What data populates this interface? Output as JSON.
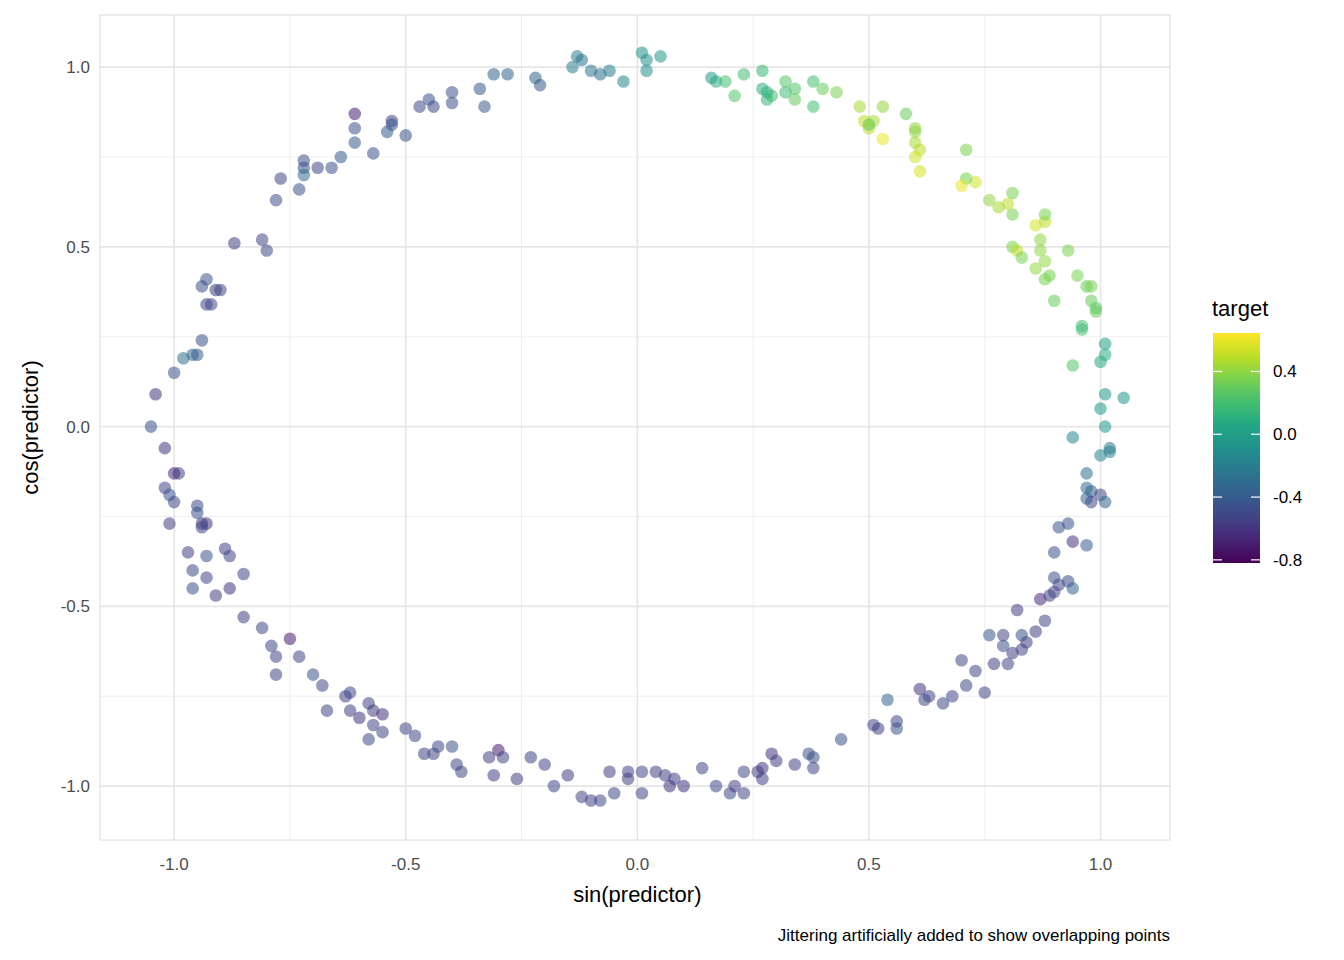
{
  "chart_data": {
    "type": "scatter",
    "x_label": "sin(predictor)",
    "y_label": "cos(predictor)",
    "annotation": "Jittering artificially added to show overlapping points",
    "grid": true,
    "marker": "circle",
    "xlim": [
      -1.16,
      1.15
    ],
    "ylim": [
      -1.15,
      1.145
    ],
    "xticks": [
      {
        "value": -1,
        "label": "-1.0"
      },
      {
        "value": -0.5,
        "label": "-0.5"
      },
      {
        "value": 0,
        "label": "0.0"
      },
      {
        "value": 0.5,
        "label": "0.5"
      },
      {
        "value": 1,
        "label": "1.0"
      }
    ],
    "yticks": [
      {
        "value": -1,
        "label": "-1.0"
      },
      {
        "value": -0.5,
        "label": "-0.5"
      },
      {
        "value": 0,
        "label": "0.0"
      },
      {
        "value": 0.5,
        "label": "0.5"
      },
      {
        "value": 1,
        "label": "1.0"
      }
    ],
    "colorbar": {
      "label": "target",
      "range": [
        -0.82,
        0.645
      ],
      "ticks": [
        {
          "value": -0.8,
          "label": "-0.8"
        },
        {
          "value": -0.4,
          "label": "-0.4"
        },
        {
          "value": 0,
          "label": "0.0"
        },
        {
          "value": 0.4,
          "label": "0.4"
        }
      ]
    },
    "x": [
      -0.13,
      -0.12,
      -0.14,
      -0.1,
      -0.08,
      -0.06,
      -0.03,
      0.01,
      0.02,
      0.02,
      0.05,
      -0.22,
      -0.21,
      -0.28,
      -0.31,
      -0.33,
      -0.34,
      -0.4,
      -0.4,
      -0.44,
      -0.45,
      -0.47,
      -0.5,
      -0.53,
      -0.53,
      -0.54,
      -0.57,
      -0.61,
      -0.61,
      -0.61,
      -0.64,
      -0.66,
      -0.69,
      -0.72,
      -0.72,
      -0.72,
      -0.73,
      -0.77,
      -0.78,
      -0.81,
      -0.8,
      -0.87,
      -0.9,
      -0.91,
      -0.93,
      -0.93,
      -0.92,
      -0.94,
      -0.94,
      -0.95,
      -0.96,
      -0.98,
      -1.0,
      -1.04,
      -1.05,
      -1.02,
      -0.99,
      -1.0,
      -1.02,
      -1.01,
      -1.0,
      -1.01,
      -0.95,
      -0.95,
      -0.94,
      -0.93,
      -0.94,
      -0.93,
      -0.97,
      -0.96,
      -0.96,
      -0.93,
      -0.91,
      -0.88,
      -0.89,
      -0.88,
      -0.85,
      -0.85,
      -0.81,
      -0.79,
      -0.75,
      -0.73,
      -0.78,
      -0.78,
      -0.7,
      -0.68,
      -0.67,
      -0.63,
      -0.62,
      -0.62,
      -0.6,
      -0.58,
      -0.57,
      -0.57,
      -0.58,
      -0.55,
      -0.55,
      -0.5,
      -0.48,
      -0.46,
      -0.44,
      -0.43,
      -0.4,
      -0.39,
      -0.38,
      -0.32,
      -0.31,
      -0.3,
      -0.29,
      -0.26,
      -0.23,
      -0.2,
      -0.18,
      -0.15,
      -0.12,
      -0.1,
      -0.08,
      -0.06,
      -0.05,
      -0.02,
      -0.02,
      0.01,
      0.01,
      0.04,
      0.06,
      0.07,
      0.08,
      0.1,
      0.14,
      0.17,
      0.2,
      0.21,
      0.23,
      0.23,
      0.26,
      0.27,
      0.27,
      0.29,
      0.3,
      0.34,
      0.37,
      0.38,
      0.38,
      0.44,
      0.51,
      0.52,
      0.54,
      0.56,
      0.56,
      0.61,
      0.62,
      0.63,
      0.66,
      0.68,
      0.7,
      0.71,
      0.73,
      0.75,
      0.76,
      0.77,
      0.79,
      0.79,
      0.8,
      0.81,
      0.82,
      0.83,
      0.83,
      0.84,
      0.86,
      0.87,
      0.88,
      0.89,
      0.9,
      0.9,
      0.9,
      0.91,
      0.91,
      0.93,
      0.93,
      0.94,
      0.94,
      0.97,
      0.97,
      0.98,
      0.98,
      0.97,
      0.97,
      1.0,
      1.01,
      0.94,
      1.0,
      1.02,
      1.02,
      1.01,
      1.0,
      1.01,
      1.05,
      1.0,
      1.01,
      1.01,
      0.94,
      0.96,
      0.96,
      0.99,
      0.99,
      0.98,
      0.97,
      0.98,
      0.95,
      0.9,
      0.93,
      0.88,
      0.89,
      0.86,
      0.88,
      0.87,
      0.87,
      0.86,
      0.88,
      0.88,
      0.81,
      0.82,
      0.83,
      0.81,
      0.8,
      0.81,
      0.78,
      0.76,
      0.73,
      0.71,
      0.7,
      0.71,
      0.61,
      0.6,
      0.61,
      0.6,
      0.6,
      0.6,
      0.58,
      0.53,
      0.53,
      0.51,
      0.5,
      0.49,
      0.48,
      0.5,
      0.43,
      0.4,
      0.38,
      0.38,
      0.34,
      0.32,
      0.34,
      0.32,
      0.29,
      0.28,
      0.28,
      0.27,
      0.27,
      0.23,
      0.21,
      0.19,
      0.17,
      0.16
    ],
    "values": [
      1.03,
      1.02,
      1.0,
      0.99,
      0.98,
      0.99,
      0.96,
      1.04,
      1.02,
      0.99,
      1.03,
      0.97,
      0.95,
      0.98,
      0.98,
      0.89,
      0.94,
      0.93,
      0.9,
      0.89,
      0.91,
      0.89,
      0.81,
      0.85,
      0.84,
      0.82,
      0.76,
      0.87,
      0.83,
      0.79,
      0.75,
      0.72,
      0.72,
      0.74,
      0.72,
      0.7,
      0.66,
      0.69,
      0.63,
      0.52,
      0.49,
      0.51,
      0.38,
      0.38,
      0.41,
      0.34,
      0.34,
      0.39,
      0.24,
      0.2,
      0.2,
      0.19,
      0.15,
      0.09,
      0.0,
      -0.06,
      -0.13,
      -0.13,
      -0.17,
      -0.19,
      -0.21,
      -0.27,
      -0.22,
      -0.24,
      -0.27,
      -0.27,
      -0.28,
      -0.36,
      -0.35,
      -0.4,
      -0.45,
      -0.42,
      -0.47,
      -0.45,
      -0.34,
      -0.36,
      -0.41,
      -0.53,
      -0.56,
      -0.61,
      -0.59,
      -0.64,
      -0.64,
      -0.69,
      -0.69,
      -0.72,
      -0.79,
      -0.75,
      -0.74,
      -0.79,
      -0.81,
      -0.77,
      -0.79,
      -0.83,
      -0.87,
      -0.85,
      -0.8,
      -0.84,
      -0.86,
      -0.91,
      -0.91,
      -0.89,
      -0.89,
      -0.94,
      -0.96,
      -0.92,
      -0.97,
      -0.9,
      -0.92,
      -0.98,
      -0.92,
      -0.94,
      -1.0,
      -0.97,
      -1.03,
      -1.04,
      -1.04,
      -0.96,
      -1.02,
      -0.96,
      -0.98,
      -0.96,
      -1.02,
      -0.96,
      -0.97,
      -1.0,
      -0.98,
      -1.0,
      -0.95,
      -1.0,
      -1.02,
      -1.0,
      -1.02,
      -0.96,
      -0.96,
      -0.95,
      -0.98,
      -0.91,
      -0.93,
      -0.94,
      -0.91,
      -0.92,
      -0.95,
      -0.87,
      -0.83,
      -0.84,
      -0.76,
      -0.82,
      -0.84,
      -0.73,
      -0.76,
      -0.75,
      -0.77,
      -0.75,
      -0.65,
      -0.72,
      -0.68,
      -0.74,
      -0.58,
      -0.66,
      -0.58,
      -0.61,
      -0.66,
      -0.63,
      -0.51,
      -0.58,
      -0.62,
      -0.6,
      -0.57,
      -0.48,
      -0.54,
      -0.47,
      -0.46,
      -0.42,
      -0.35,
      -0.44,
      -0.28,
      -0.43,
      -0.27,
      -0.45,
      -0.32,
      -0.33,
      -0.2,
      -0.18,
      -0.21,
      -0.17,
      -0.13,
      -0.19,
      -0.21,
      -0.03,
      -0.08,
      -0.06,
      -0.07,
      0.0,
      0.05,
      0.09,
      0.08,
      0.18,
      0.2,
      0.23,
      0.17,
      0.27,
      0.28,
      0.33,
      0.32,
      0.35,
      0.39,
      0.39,
      0.42,
      0.35,
      0.49,
      0.41,
      0.42,
      0.44,
      0.46,
      0.49,
      0.52,
      0.56,
      0.57,
      0.59,
      0.5,
      0.49,
      0.47,
      0.59,
      0.62,
      0.65,
      0.61,
      0.63,
      0.68,
      0.69,
      0.67,
      0.77,
      0.71,
      0.75,
      0.77,
      0.79,
      0.82,
      0.83,
      0.87,
      0.8,
      0.89,
      0.85,
      0.83,
      0.85,
      0.89,
      0.84,
      0.93,
      0.94,
      0.89,
      0.96,
      0.94,
      0.96,
      0.91,
      0.93,
      0.92,
      0.93,
      0.91,
      0.94,
      0.99,
      0.98,
      0.92,
      0.96,
      0.96,
      0.97
    ],
    "target": [
      -0.2,
      -0.25,
      -0.2,
      -0.25,
      -0.3,
      -0.2,
      -0.15,
      -0.1,
      -0.1,
      -0.1,
      -0.05,
      -0.35,
      -0.4,
      -0.35,
      -0.35,
      -0.4,
      -0.4,
      -0.45,
      -0.45,
      -0.5,
      -0.45,
      -0.5,
      -0.45,
      -0.5,
      -0.45,
      -0.4,
      -0.45,
      -0.7,
      -0.45,
      -0.4,
      -0.4,
      -0.45,
      -0.5,
      -0.45,
      -0.45,
      -0.3,
      -0.45,
      -0.5,
      -0.45,
      -0.5,
      -0.5,
      -0.55,
      -0.5,
      -0.55,
      -0.45,
      -0.5,
      -0.5,
      -0.45,
      -0.45,
      -0.4,
      -0.35,
      -0.3,
      -0.45,
      -0.6,
      -0.45,
      -0.6,
      -0.55,
      -0.65,
      -0.5,
      -0.45,
      -0.5,
      -0.55,
      -0.5,
      -0.45,
      -0.6,
      -0.6,
      -0.5,
      -0.45,
      -0.55,
      -0.5,
      -0.45,
      -0.5,
      -0.55,
      -0.6,
      -0.55,
      -0.5,
      -0.5,
      -0.55,
      -0.5,
      -0.5,
      -0.7,
      -0.5,
      -0.5,
      -0.5,
      -0.45,
      -0.5,
      -0.5,
      -0.55,
      -0.5,
      -0.55,
      -0.6,
      -0.55,
      -0.55,
      -0.5,
      -0.5,
      -0.5,
      -0.6,
      -0.5,
      -0.5,
      -0.55,
      -0.5,
      -0.5,
      -0.45,
      -0.5,
      -0.5,
      -0.55,
      -0.55,
      -0.7,
      -0.5,
      -0.55,
      -0.5,
      -0.5,
      -0.5,
      -0.55,
      -0.5,
      -0.55,
      -0.5,
      -0.55,
      -0.5,
      -0.5,
      -0.55,
      -0.5,
      -0.5,
      -0.55,
      -0.55,
      -0.6,
      -0.55,
      -0.6,
      -0.5,
      -0.5,
      -0.5,
      -0.55,
      -0.5,
      -0.5,
      -0.55,
      -0.6,
      -0.55,
      -0.6,
      -0.55,
      -0.55,
      -0.45,
      -0.45,
      -0.5,
      -0.45,
      -0.5,
      -0.55,
      -0.35,
      -0.5,
      -0.45,
      -0.6,
      -0.5,
      -0.5,
      -0.5,
      -0.5,
      -0.5,
      -0.5,
      -0.5,
      -0.5,
      -0.4,
      -0.55,
      -0.5,
      -0.45,
      -0.5,
      -0.55,
      -0.55,
      -0.45,
      -0.5,
      -0.55,
      -0.55,
      -0.65,
      -0.5,
      -0.55,
      -0.5,
      -0.45,
      -0.45,
      -0.5,
      -0.45,
      -0.5,
      -0.45,
      -0.35,
      -0.6,
      -0.4,
      -0.35,
      -0.4,
      -0.5,
      -0.3,
      -0.3,
      -0.5,
      -0.35,
      -0.15,
      -0.15,
      -0.2,
      -0.2,
      -0.05,
      -0.05,
      -0.05,
      -0.05,
      0.05,
      0.1,
      0.0,
      0.25,
      0.2,
      0.2,
      0.25,
      0.3,
      0.3,
      0.3,
      0.35,
      0.35,
      0.3,
      0.35,
      0.35,
      0.35,
      0.4,
      0.4,
      0.4,
      0.4,
      0.55,
      0.5,
      0.35,
      0.35,
      0.5,
      0.35,
      0.35,
      0.5,
      0.35,
      0.45,
      0.4,
      0.55,
      0.35,
      0.6,
      0.35,
      0.55,
      0.55,
      0.5,
      0.45,
      0.4,
      0.4,
      0.3,
      0.6,
      0.4,
      0.45,
      0.5,
      0.5,
      0.45,
      0.3,
      0.35,
      0.3,
      0.2,
      0.2,
      0.25,
      0.25,
      0.3,
      0.2,
      0.2,
      0.1,
      0.15,
      0.1,
      0.15,
      0.2,
      0.25,
      0.2,
      0.1,
      0.0
    ]
  }
}
